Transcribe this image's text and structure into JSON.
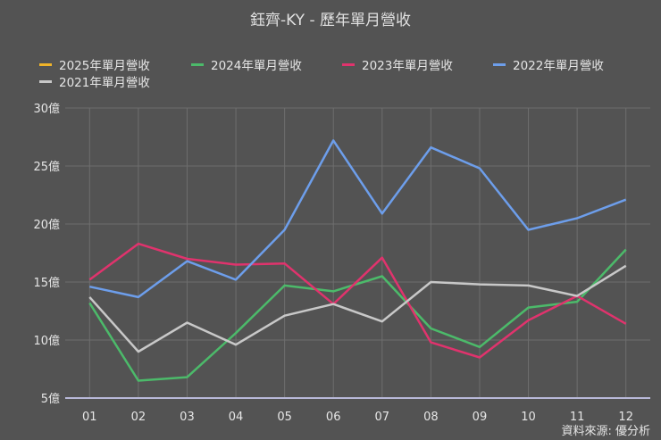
{
  "title": "鈺齊-KY - 歷年單月營收",
  "source": "資料來源: 優分析",
  "legend": [
    {
      "label": "2025年單月營收",
      "color": "#f0b429"
    },
    {
      "label": "2024年單月營收",
      "color": "#4cba6a"
    },
    {
      "label": "2023年單月營收",
      "color": "#e0336d"
    },
    {
      "label": "2022年單月營收",
      "color": "#6d9eeb"
    },
    {
      "label": "2021年單月營收",
      "color": "#c8c8c8"
    }
  ],
  "chart_data": {
    "type": "line",
    "title": "鈺齊-KY - 歷年單月營收",
    "xlabel": "",
    "ylabel": "",
    "categories": [
      "01",
      "02",
      "03",
      "04",
      "05",
      "06",
      "07",
      "08",
      "09",
      "10",
      "11",
      "12"
    ],
    "yticks": [
      "5億",
      "10億",
      "15億",
      "20億",
      "25億",
      "30億"
    ],
    "ylim": [
      5,
      30
    ],
    "grid": true,
    "legend_position": "top",
    "series": [
      {
        "name": "2025年單月營收",
        "color": "#f0b429",
        "values": []
      },
      {
        "name": "2024年單月營收",
        "color": "#4cba6a",
        "values": [
          13.2,
          6.5,
          6.8,
          10.6,
          14.7,
          14.2,
          15.5,
          11.0,
          9.4,
          12.8,
          13.3,
          17.8
        ]
      },
      {
        "name": "2023年單月營收",
        "color": "#e0336d",
        "values": [
          15.2,
          18.3,
          17.0,
          16.5,
          16.6,
          13.1,
          17.1,
          9.8,
          8.5,
          11.7,
          13.8,
          11.4
        ]
      },
      {
        "name": "2022年單月營收",
        "color": "#6d9eeb",
        "values": [
          14.6,
          13.7,
          16.8,
          15.2,
          19.5,
          27.2,
          20.9,
          26.6,
          24.8,
          19.5,
          20.5,
          22.1
        ]
      },
      {
        "name": "2021年單月營收",
        "color": "#c8c8c8",
        "values": [
          13.7,
          9.0,
          11.5,
          9.6,
          12.1,
          13.1,
          11.6,
          15.0,
          14.8,
          14.7,
          13.8,
          16.4
        ]
      }
    ]
  }
}
